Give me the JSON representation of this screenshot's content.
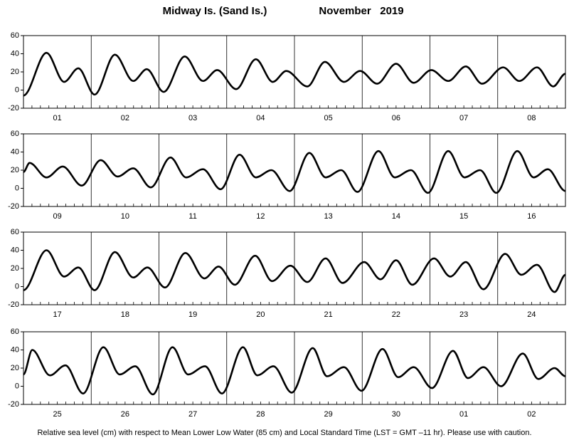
{
  "title": "Midway Is. (Sand Is.)",
  "subtitle": "November   2019",
  "footnote": "Relative sea level (cm) with respect to Mean Lower Low Water (85 cm) and Local Standard Time (LST = GMT –11 hr). Please use with caution.",
  "chart_data": [
    {
      "type": "line",
      "color": "#000000",
      "categories": [
        "01",
        "02",
        "03",
        "04",
        "05",
        "06",
        "07",
        "08"
      ],
      "xlim": [
        0,
        8
      ],
      "ylim": [
        -20,
        60
      ],
      "yticks": [
        -20,
        0,
        20,
        40,
        60
      ],
      "x": [
        0,
        0.34,
        0.6,
        0.81,
        1.05,
        1.35,
        1.62,
        1.82,
        2.07,
        2.38,
        2.65,
        2.86,
        3.14,
        3.43,
        3.68,
        3.88,
        4.19,
        4.45,
        4.73,
        4.97,
        5.22,
        5.5,
        5.76,
        6.02,
        6.27,
        6.53,
        6.77,
        7.08,
        7.32,
        7.58,
        7.82,
        8
      ],
      "values": [
        -6,
        41,
        9,
        24,
        -5,
        39,
        10,
        23,
        -2,
        37,
        10,
        22,
        1,
        34,
        9,
        21,
        4,
        31,
        9,
        21,
        7,
        29,
        8,
        22,
        10,
        26,
        7,
        25,
        10,
        25,
        4,
        18
      ]
    },
    {
      "type": "line",
      "color": "#000000",
      "categories": [
        "09",
        "10",
        "11",
        "12",
        "13",
        "14",
        "15",
        "16"
      ],
      "xlim": [
        0,
        8
      ],
      "ylim": [
        -20,
        60
      ],
      "yticks": [
        -20,
        0,
        20,
        40,
        60
      ],
      "x": [
        0,
        0.09,
        0.34,
        0.58,
        0.86,
        1.14,
        1.39,
        1.62,
        1.88,
        2.17,
        2.4,
        2.65,
        2.91,
        3.19,
        3.43,
        3.66,
        3.93,
        4.22,
        4.46,
        4.69,
        4.93,
        5.24,
        5.48,
        5.72,
        5.97,
        6.27,
        6.51,
        6.74,
        6.98,
        7.29,
        7.53,
        7.74,
        8
      ],
      "values": [
        18,
        28,
        12,
        24,
        3,
        31,
        13,
        22,
        1,
        34,
        12,
        21,
        -1,
        37,
        12,
        20,
        -3,
        39,
        12,
        20,
        -4,
        41,
        12,
        20,
        -5,
        41,
        12,
        20,
        -5,
        41,
        12,
        21,
        -3
      ]
    },
    {
      "type": "line",
      "color": "#000000",
      "categories": [
        "17",
        "18",
        "19",
        "20",
        "21",
        "22",
        "23",
        "24"
      ],
      "xlim": [
        0,
        8
      ],
      "ylim": [
        -20,
        60
      ],
      "yticks": [
        -20,
        0,
        20,
        40,
        60
      ],
      "x": [
        0,
        0.34,
        0.6,
        0.81,
        1.05,
        1.35,
        1.62,
        1.83,
        2.09,
        2.39,
        2.67,
        2.88,
        3.12,
        3.42,
        3.67,
        3.94,
        4.19,
        4.46,
        4.71,
        5.03,
        5.27,
        5.5,
        5.74,
        6.06,
        6.3,
        6.53,
        6.79,
        7.11,
        7.35,
        7.58,
        7.84,
        8
      ],
      "values": [
        -4,
        40,
        11,
        21,
        -4,
        38,
        10,
        21,
        -1,
        37,
        9,
        22,
        2,
        34,
        6,
        23,
        5,
        31,
        4,
        27,
        8,
        29,
        2,
        31,
        11,
        27,
        -3,
        36,
        13,
        24,
        -6,
        13
      ]
    },
    {
      "type": "line",
      "color": "#000000",
      "categories": [
        "25",
        "26",
        "27",
        "28",
        "29",
        "30",
        "01",
        "02"
      ],
      "xlim": [
        0,
        8
      ],
      "ylim": [
        -20,
        60
      ],
      "yticks": [
        -20,
        0,
        20,
        40,
        60
      ],
      "x": [
        0,
        0.13,
        0.39,
        0.62,
        0.88,
        1.18,
        1.42,
        1.65,
        1.91,
        2.2,
        2.43,
        2.68,
        2.93,
        3.24,
        3.45,
        3.69,
        3.96,
        4.27,
        4.48,
        4.73,
        4.99,
        5.3,
        5.53,
        5.76,
        6.03,
        6.34,
        6.56,
        6.79,
        7.05,
        7.37,
        7.6,
        7.84,
        8
      ],
      "values": [
        13,
        40,
        12,
        23,
        -8,
        43,
        13,
        22,
        -9,
        43,
        13,
        22,
        -8,
        43,
        12,
        22,
        -7,
        42,
        11,
        21,
        -5,
        41,
        10,
        21,
        -2,
        39,
        9,
        21,
        0,
        36,
        8,
        20,
        11
      ]
    }
  ]
}
